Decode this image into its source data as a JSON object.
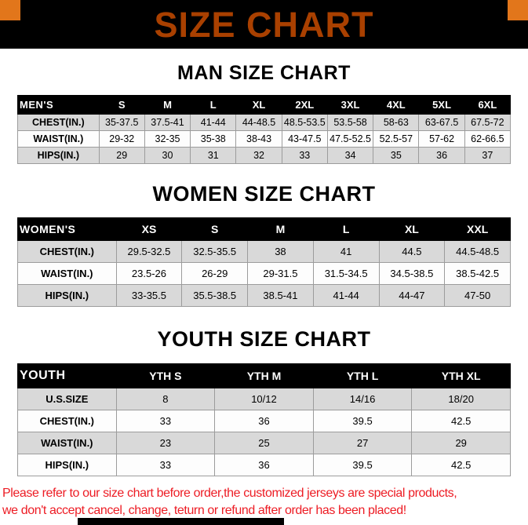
{
  "banner": {
    "title": "SIZE CHART"
  },
  "colors": {
    "banner_bg": "#000000",
    "banner_title": "#a94000",
    "corner_accent": "#e2761b",
    "row_stripe": "#d9d9d9",
    "footer_text": "#ed1c24"
  },
  "chart_data": [
    {
      "type": "table",
      "title": "MAN SIZE CHART",
      "columns": [
        "MEN'S",
        "S",
        "M",
        "L",
        "XL",
        "2XL",
        "3XL",
        "4XL",
        "5XL",
        "6XL"
      ],
      "rows": [
        [
          "CHEST(IN.)",
          "35-37.5",
          "37.5-41",
          "41-44",
          "44-48.5",
          "48.5-53.5",
          "53.5-58",
          "58-63",
          "63-67.5",
          "67.5-72"
        ],
        [
          "WAIST(IN.)",
          "29-32",
          "32-35",
          "35-38",
          "38-43",
          "43-47.5",
          "47.5-52.5",
          "52.5-57",
          "57-62",
          "62-66.5"
        ],
        [
          "HIPS(IN.)",
          "29",
          "30",
          "31",
          "32",
          "33",
          "34",
          "35",
          "36",
          "37"
        ]
      ]
    },
    {
      "type": "table",
      "title": "WOMEN SIZE CHART",
      "columns": [
        "WOMEN'S",
        "XS",
        "S",
        "M",
        "L",
        "XL",
        "XXL"
      ],
      "rows": [
        [
          "CHEST(IN.)",
          "29.5-32.5",
          "32.5-35.5",
          "38",
          "41",
          "44.5",
          "44.5-48.5"
        ],
        [
          "WAIST(IN.)",
          "23.5-26",
          "26-29",
          "29-31.5",
          "31.5-34.5",
          "34.5-38.5",
          "38.5-42.5"
        ],
        [
          "HIPS(IN.)",
          "33-35.5",
          "35.5-38.5",
          "38.5-41",
          "41-44",
          "44-47",
          "47-50"
        ]
      ]
    },
    {
      "type": "table",
      "title": "YOUTH SIZE CHART",
      "columns": [
        "YOUTH",
        "YTH S",
        "YTH M",
        "YTH L",
        "YTH XL"
      ],
      "rows": [
        [
          "U.S.SIZE",
          "8",
          "10/12",
          "14/16",
          "18/20"
        ],
        [
          "CHEST(IN.)",
          "33",
          "36",
          "39.5",
          "42.5"
        ],
        [
          "WAIST(IN.)",
          "23",
          "25",
          "27",
          "29"
        ],
        [
          "HIPS(IN.)",
          "33",
          "36",
          "39.5",
          "42.5"
        ]
      ]
    }
  ],
  "footer": {
    "lines": [
      "Please refer to our size chart before order,the customized jerseys are special products,",
      "we don't accept cancel, change, teturn or refund after order has been placed!"
    ]
  }
}
